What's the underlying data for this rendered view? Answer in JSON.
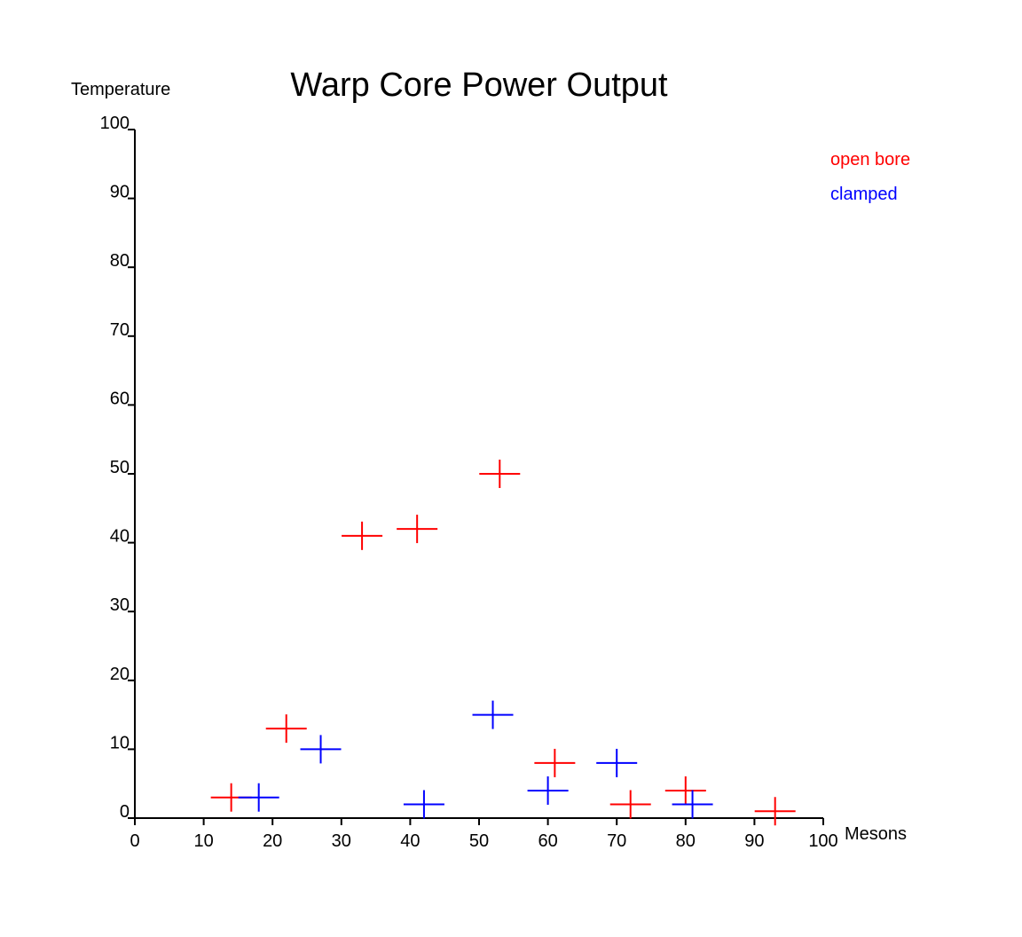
{
  "chart_data": {
    "type": "scatter",
    "title": "Warp Core Power Output",
    "xlabel": "Mesons",
    "ylabel": "Temperature",
    "xlim": [
      0,
      100
    ],
    "ylim": [
      0,
      100
    ],
    "x_ticks": [
      0,
      10,
      20,
      30,
      40,
      50,
      60,
      70,
      80,
      90,
      100
    ],
    "y_ticks": [
      0,
      10,
      20,
      30,
      40,
      50,
      60,
      70,
      80,
      90,
      100
    ],
    "grid": false,
    "legend_position": "top-right",
    "marker": "plus",
    "series": [
      {
        "name": "open bore",
        "color": "#ff0000",
        "points": [
          {
            "x": 14,
            "y": 3
          },
          {
            "x": 22,
            "y": 13
          },
          {
            "x": 33,
            "y": 41
          },
          {
            "x": 41,
            "y": 42
          },
          {
            "x": 53,
            "y": 50
          },
          {
            "x": 61,
            "y": 8
          },
          {
            "x": 72,
            "y": 2
          },
          {
            "x": 80,
            "y": 4
          },
          {
            "x": 93,
            "y": 1
          }
        ]
      },
      {
        "name": "clamped",
        "color": "#0000ff",
        "points": [
          {
            "x": 18,
            "y": 3
          },
          {
            "x": 27,
            "y": 10
          },
          {
            "x": 42,
            "y": 2
          },
          {
            "x": 52,
            "y": 15
          },
          {
            "x": 60,
            "y": 4
          },
          {
            "x": 70,
            "y": 8
          },
          {
            "x": 81,
            "y": 2
          }
        ]
      }
    ]
  }
}
